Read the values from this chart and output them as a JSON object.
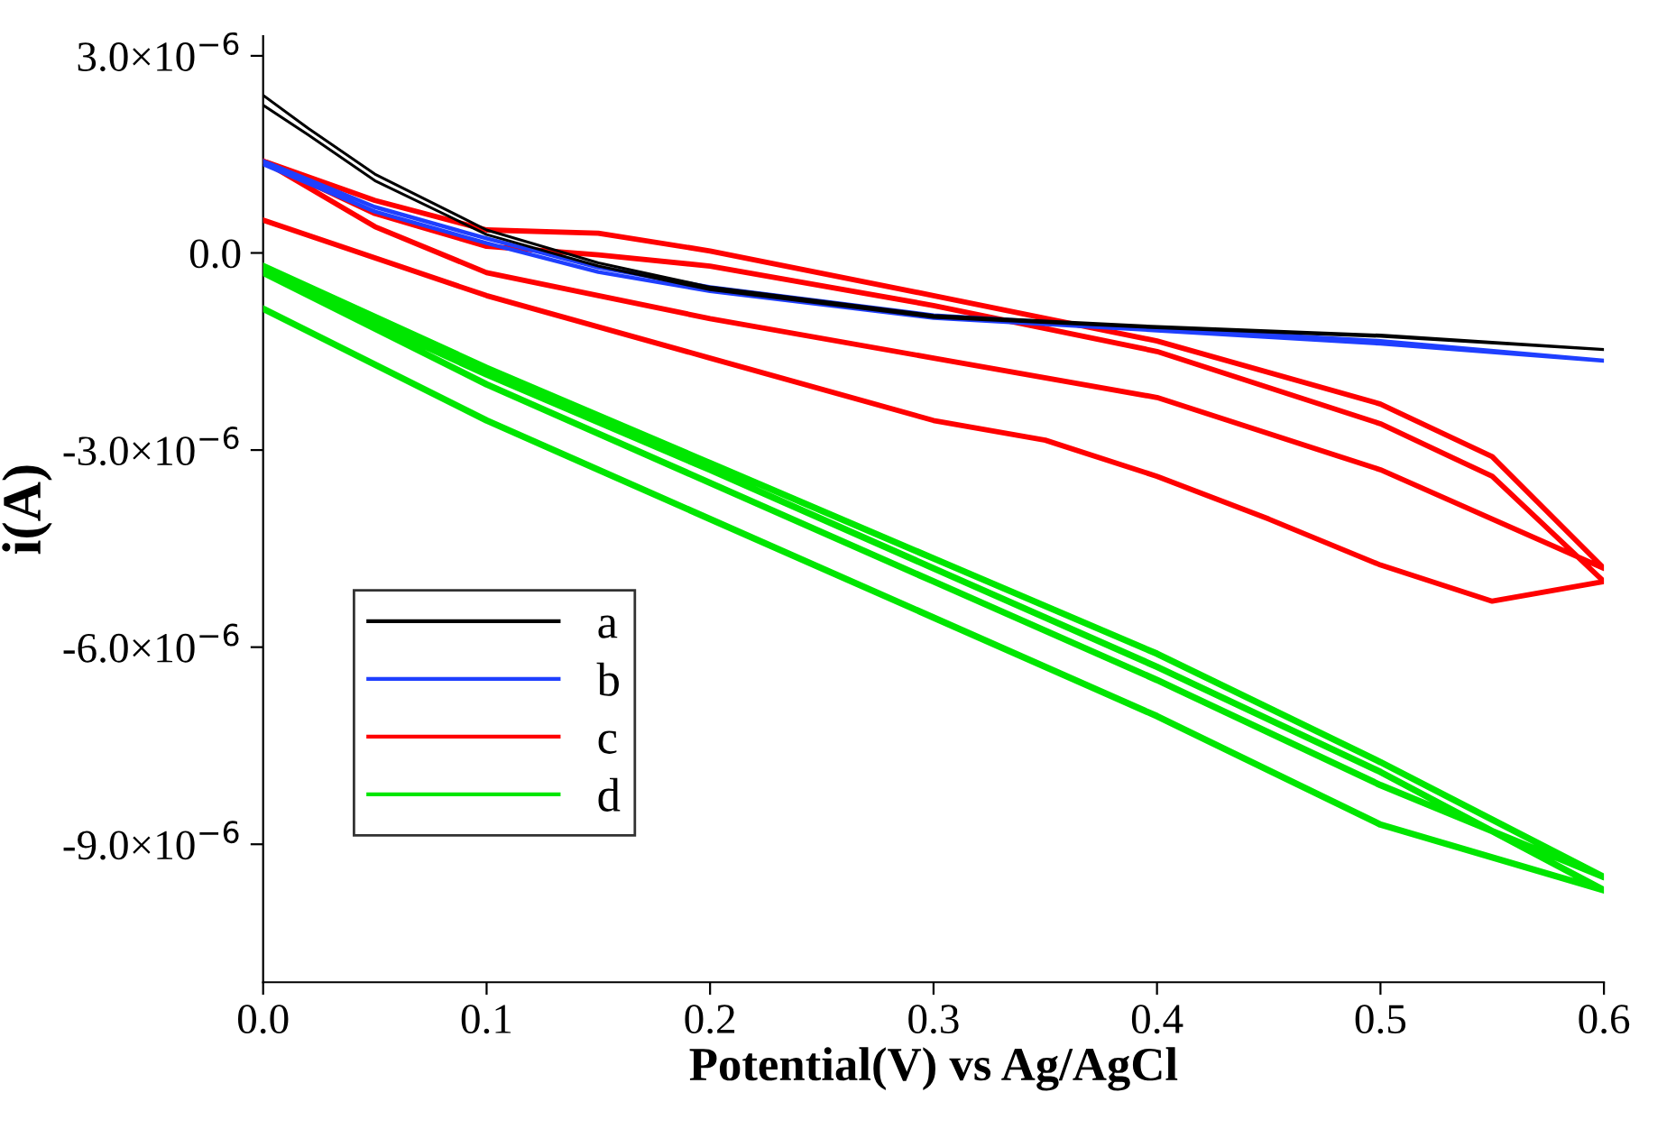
{
  "chart_data": {
    "type": "line",
    "xlabel": "Potential(V) vs Ag/AgCl",
    "ylabel": "i(A)",
    "xlim": [
      0,
      0.6
    ],
    "ylim": [
      -1.11e-05,
      3.3e-06
    ],
    "xticks": [
      {
        "value": 0,
        "label": "0.0"
      },
      0.1,
      0.2,
      0.3,
      0.4,
      0.5,
      0.6
    ],
    "yticks": [
      {
        "value": 3e-06,
        "label": "3.0×10$^{−6}$"
      },
      {
        "value": 0,
        "label": "0.0"
      },
      {
        "value": -3e-06,
        "label": "-3.0×10$^{−6}$"
      },
      {
        "value": -6e-06,
        "label": "-6.0×10$^{−6}$"
      },
      {
        "value": -9e-06,
        "label": "-9.0×10$^{−6}$"
      }
    ],
    "legend": "lower left",
    "grid": false,
    "marker": "none",
    "line_style": "solid",
    "series": [
      {
        "name": "a",
        "color": "#000000",
        "x": [
          0,
          0.02,
          0.05,
          0.1,
          0.15,
          0.2,
          0.3,
          0.4,
          0.5,
          0.6,
          0.5,
          0.4,
          0.3,
          0.2,
          0.15,
          0.1,
          0.05,
          0.02,
          0
        ],
        "values": [
          2.4e-06,
          1.9e-06,
          1.2e-06,
          3.5e-07,
          -1.5e-07,
          -5.2e-07,
          -9.5e-07,
          -1.12e-06,
          -1.25e-06,
          -1.47e-06,
          -1.27e-06,
          -1.14e-06,
          -9.8e-07,
          -5.6e-07,
          -2e-07,
          2.8e-07,
          1.1e-06,
          1.8e-06,
          2.25e-06
        ]
      },
      {
        "name": "b",
        "color": "#1f3fff",
        "x": [
          0,
          0.05,
          0.1,
          0.15,
          0.2,
          0.3,
          0.4,
          0.5,
          0.6,
          0.5,
          0.4,
          0.3,
          0.2,
          0.15,
          0.1,
          0.05,
          0
        ],
        "values": [
          1.4e-06,
          7e-07,
          2.2e-07,
          -2.2e-07,
          -5.2e-07,
          -9.5e-07,
          -1.15e-06,
          -1.34e-06,
          -1.64e-06,
          -1.38e-06,
          -1.18e-06,
          -9.9e-07,
          -5.8e-07,
          -2.9e-07,
          1.5e-07,
          6.3e-07,
          1.35e-06
        ]
      },
      {
        "name": "c",
        "color": "#ff0000",
        "x": [
          0,
          0.05,
          0.1,
          0.15,
          0.2,
          0.3,
          0.4,
          0.5,
          0.55,
          0.6,
          0.5,
          0.4,
          0.3,
          0.2,
          0.1,
          0.05,
          0,
          0.05,
          0.1,
          0.15,
          0.2,
          0.3,
          0.4,
          0.5,
          0.55,
          0.6,
          0.55,
          0.5,
          0.45,
          0.4,
          0.35,
          0.3,
          0.2,
          0.1,
          0
        ],
        "values": [
          1.4e-06,
          8e-07,
          3.5e-07,
          3e-07,
          3e-08,
          -6.5e-07,
          -1.34e-06,
          -2.3e-06,
          -3.1e-06,
          -4.8e-06,
          -3.3e-06,
          -2.2e-06,
          -1.6e-06,
          -1e-06,
          -3e-07,
          4e-07,
          1.4e-06,
          6e-07,
          1e-07,
          -3e-08,
          -2e-07,
          -8e-07,
          -1.5e-06,
          -2.6e-06,
          -3.4e-06,
          -5e-06,
          -5.3e-06,
          -4.75e-06,
          -4.05e-06,
          -3.4e-06,
          -2.85e-06,
          -2.55e-06,
          -1.6e-06,
          -6.5e-07,
          5e-07
        ]
      },
      {
        "name": "d",
        "color": "#00e600",
        "x": [
          0,
          0.1,
          0.2,
          0.3,
          0.4,
          0.5,
          0.6,
          0.5,
          0.4,
          0.3,
          0.2,
          0.1,
          0,
          0.1,
          0.2,
          0.3,
          0.4,
          0.5,
          0.6,
          0.5,
          0.4,
          0.3,
          0.2,
          0.1,
          0
        ],
        "values": [
          -2e-07,
          -1.75e-06,
          -3.2e-06,
          -4.65e-06,
          -6.1e-06,
          -7.75e-06,
          -9.5e-06,
          -8.1e-06,
          -6.5e-06,
          -5e-06,
          -3.5e-06,
          -2e-06,
          -3e-07,
          -1.85e-06,
          -3.3e-06,
          -4.8e-06,
          -6.3e-06,
          -7.9e-06,
          -9.7e-06,
          -8.7e-06,
          -7.05e-06,
          -5.55e-06,
          -4.05e-06,
          -2.55e-06,
          -8.5e-07
        ]
      }
    ]
  }
}
